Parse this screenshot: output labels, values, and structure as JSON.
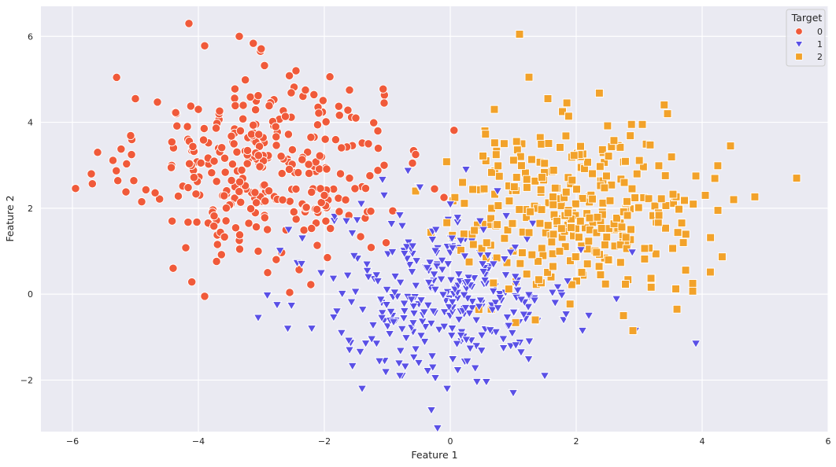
{
  "chart_data": {
    "type": "scatter",
    "xlabel": "Feature 1",
    "ylabel": "Feature 2",
    "xlim": [
      -6.5,
      6.0
    ],
    "ylim": [
      -3.2,
      6.7
    ],
    "xticks": [
      -6,
      -4,
      -2,
      0,
      2,
      4,
      6
    ],
    "yticks": [
      -2,
      0,
      2,
      4,
      6
    ],
    "grid": true,
    "background": "#EAEAF2",
    "legend": {
      "title": "Target",
      "placement": "top-right",
      "entries": [
        "0",
        "1",
        "2"
      ]
    },
    "series": [
      {
        "name": "0",
        "marker": "circle",
        "color": "#F05A3A",
        "n_points": 333,
        "x_mean": -3.0,
        "x_std": 0.95,
        "y_mean": 3.0,
        "y_std": 1.05,
        "points": [
          [
            -5.95,
            2.46
          ],
          [
            -4.15,
            6.3
          ],
          [
            -3.35,
            6.0
          ],
          [
            -3.9,
            5.78
          ],
          [
            -4.65,
            4.47
          ],
          [
            -5.0,
            4.55
          ],
          [
            -5.6,
            3.3
          ],
          [
            -5.7,
            2.8
          ],
          [
            -5.15,
            2.38
          ],
          [
            -4.9,
            2.15
          ],
          [
            -3.9,
            -0.05
          ],
          [
            -2.55,
            0.04
          ],
          [
            -2.9,
            0.5
          ],
          [
            -4.2,
            1.08
          ],
          [
            -3.35,
            1.25
          ],
          [
            -1.95,
            0.85
          ],
          [
            -1.15,
            3.8
          ],
          [
            -1.05,
            4.45
          ],
          [
            -1.3,
            3.5
          ],
          [
            -1.05,
            3.0
          ],
          [
            -1.4,
            2.5
          ],
          [
            -2.1,
            4.35
          ],
          [
            -2.3,
            4.75
          ],
          [
            -2.95,
            5.32
          ],
          [
            -2.45,
            5.2
          ],
          [
            -3.05,
            4.62
          ],
          [
            -4.35,
            4.2
          ],
          [
            -4.0,
            4.3
          ],
          [
            -1.5,
            4.1
          ],
          [
            -1.6,
            4.75
          ],
          [
            -2.0,
            2.3
          ],
          [
            -2.35,
            2.1
          ],
          [
            -3.75,
            1.82
          ],
          [
            -3.2,
            1.65
          ],
          [
            -3.05,
            1.0
          ],
          [
            -2.4,
            0.57
          ],
          [
            -0.55,
            3.25
          ],
          [
            -0.6,
            3.05
          ],
          [
            -0.25,
            2.45
          ],
          [
            -1.15,
            2.88
          ],
          [
            -0.1,
            2.25
          ],
          [
            -1.6,
            2.7
          ]
        ]
      },
      {
        "name": "1",
        "marker": "triangle-down",
        "color": "#5A50E6",
        "n_points": 333,
        "x_mean": 0.0,
        "x_std": 1.0,
        "y_mean": 0.0,
        "y_std": 0.95,
        "points": [
          [
            -0.3,
            -2.7
          ],
          [
            -2.35,
            1.3
          ],
          [
            -1.65,
            1.7
          ],
          [
            -1.05,
            2.3
          ],
          [
            -0.5,
            2.5
          ],
          [
            0.25,
            2.9
          ],
          [
            0.75,
            2.4
          ],
          [
            3.9,
            -1.15
          ],
          [
            2.1,
            -0.85
          ],
          [
            1.0,
            -2.3
          ],
          [
            -0.05,
            -2.2
          ],
          [
            -1.4,
            -2.2
          ],
          [
            -1.6,
            -1.3
          ],
          [
            -2.75,
            -0.25
          ],
          [
            -2.2,
            -0.8
          ],
          [
            -3.05,
            -0.55
          ],
          [
            -1.8,
            -0.4
          ],
          [
            -1.3,
            0.4
          ],
          [
            1.5,
            -1.9
          ],
          [
            2.2,
            -0.5
          ],
          [
            1.8,
            -0.6
          ],
          [
            -0.8,
            -1.9
          ],
          [
            -0.5,
            -1.6
          ]
        ]
      },
      {
        "name": "2",
        "marker": "square",
        "color": "#F2A22A",
        "n_points": 333,
        "x_mean": 2.0,
        "x_std": 1.0,
        "y_mean": 2.0,
        "y_std": 0.95,
        "points": [
          [
            1.1,
            6.05
          ],
          [
            5.5,
            2.7
          ],
          [
            4.45,
            3.45
          ],
          [
            4.5,
            2.2
          ],
          [
            4.25,
            1.95
          ],
          [
            4.05,
            2.3
          ],
          [
            3.9,
            2.75
          ],
          [
            3.85,
            0.25
          ],
          [
            3.85,
            0.07
          ],
          [
            3.6,
            -0.35
          ],
          [
            2.9,
            -0.85
          ],
          [
            2.75,
            -0.5
          ],
          [
            1.25,
            5.05
          ],
          [
            1.55,
            4.55
          ],
          [
            0.7,
            4.3
          ],
          [
            3.45,
            4.2
          ],
          [
            3.05,
            3.95
          ],
          [
            0.55,
            3.8
          ],
          [
            -0.55,
            2.4
          ],
          [
            0.3,
            0.75
          ],
          [
            0.65,
            -0.35
          ],
          [
            1.35,
            -0.6
          ],
          [
            1.6,
            0.4
          ]
        ]
      }
    ]
  }
}
